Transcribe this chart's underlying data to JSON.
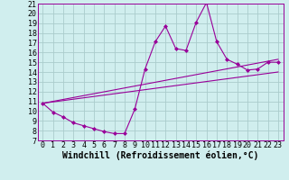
{
  "background_color": "#d0eeee",
  "line_color": "#990099",
  "grid_color": "#aacccc",
  "xlabel": "Windchill (Refroidissement éolien,°C)",
  "xlabel_fontsize": 7,
  "tick_fontsize": 6,
  "xlim": [
    -0.5,
    23.5
  ],
  "ylim": [
    7,
    21
  ],
  "yticks": [
    7,
    8,
    9,
    10,
    11,
    12,
    13,
    14,
    15,
    16,
    17,
    18,
    19,
    20,
    21
  ],
  "xticks": [
    0,
    1,
    2,
    3,
    4,
    5,
    6,
    7,
    8,
    9,
    10,
    11,
    12,
    13,
    14,
    15,
    16,
    17,
    18,
    19,
    20,
    21,
    22,
    23
  ],
  "series1_x": [
    0,
    1,
    2,
    3,
    4,
    5,
    6,
    7,
    8,
    9,
    10,
    11,
    12,
    13,
    14,
    15,
    16,
    17,
    18,
    19,
    20,
    21,
    22,
    23
  ],
  "series1_y": [
    10.8,
    9.9,
    9.4,
    8.8,
    8.5,
    8.2,
    7.9,
    7.7,
    7.7,
    10.2,
    14.3,
    17.1,
    18.7,
    16.4,
    16.2,
    19.1,
    21.1,
    17.1,
    15.3,
    14.8,
    14.2,
    14.3,
    15.0,
    15.0
  ],
  "series2_x": [
    0,
    23
  ],
  "series2_y": [
    10.8,
    15.3
  ],
  "series3_x": [
    0,
    23
  ],
  "series3_y": [
    10.8,
    14.0
  ]
}
